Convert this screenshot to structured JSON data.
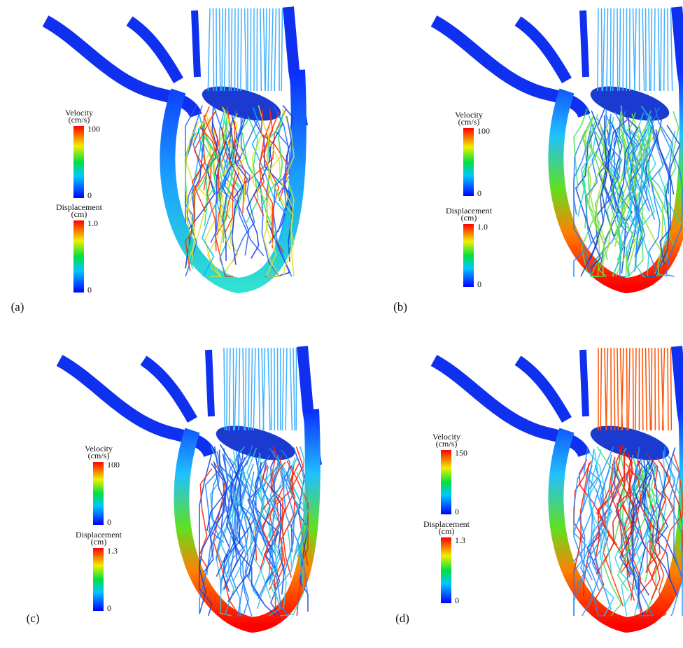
{
  "panels": [
    {
      "label": "(a)",
      "colorbars": [
        {
          "title": "Velocity",
          "unit": "(cm/s)",
          "max": "100",
          "min": "0"
        },
        {
          "title": "Displacement",
          "unit": "(cm)",
          "max": "1.0",
          "min": "0"
        }
      ]
    },
    {
      "label": "(b)",
      "colorbars": [
        {
          "title": "Velocity",
          "unit": "(cm/s)",
          "max": "100",
          "min": "0"
        },
        {
          "title": "Displacement",
          "unit": "(cm)",
          "max": "1.0",
          "min": "0"
        }
      ]
    },
    {
      "label": "(c)",
      "colorbars": [
        {
          "title": "Velocity",
          "unit": "(cm/s)",
          "max": "100",
          "min": "0"
        },
        {
          "title": "Displacement",
          "unit": "(cm)",
          "max": "1.3",
          "min": "0"
        }
      ]
    },
    {
      "label": "(d)",
      "colorbars": [
        {
          "title": "Velocity",
          "unit": "(cm/s)",
          "max": "150",
          "min": "0"
        },
        {
          "title": "Displacement",
          "unit": "(cm)",
          "max": "1.3",
          "min": "0"
        }
      ]
    }
  ]
}
